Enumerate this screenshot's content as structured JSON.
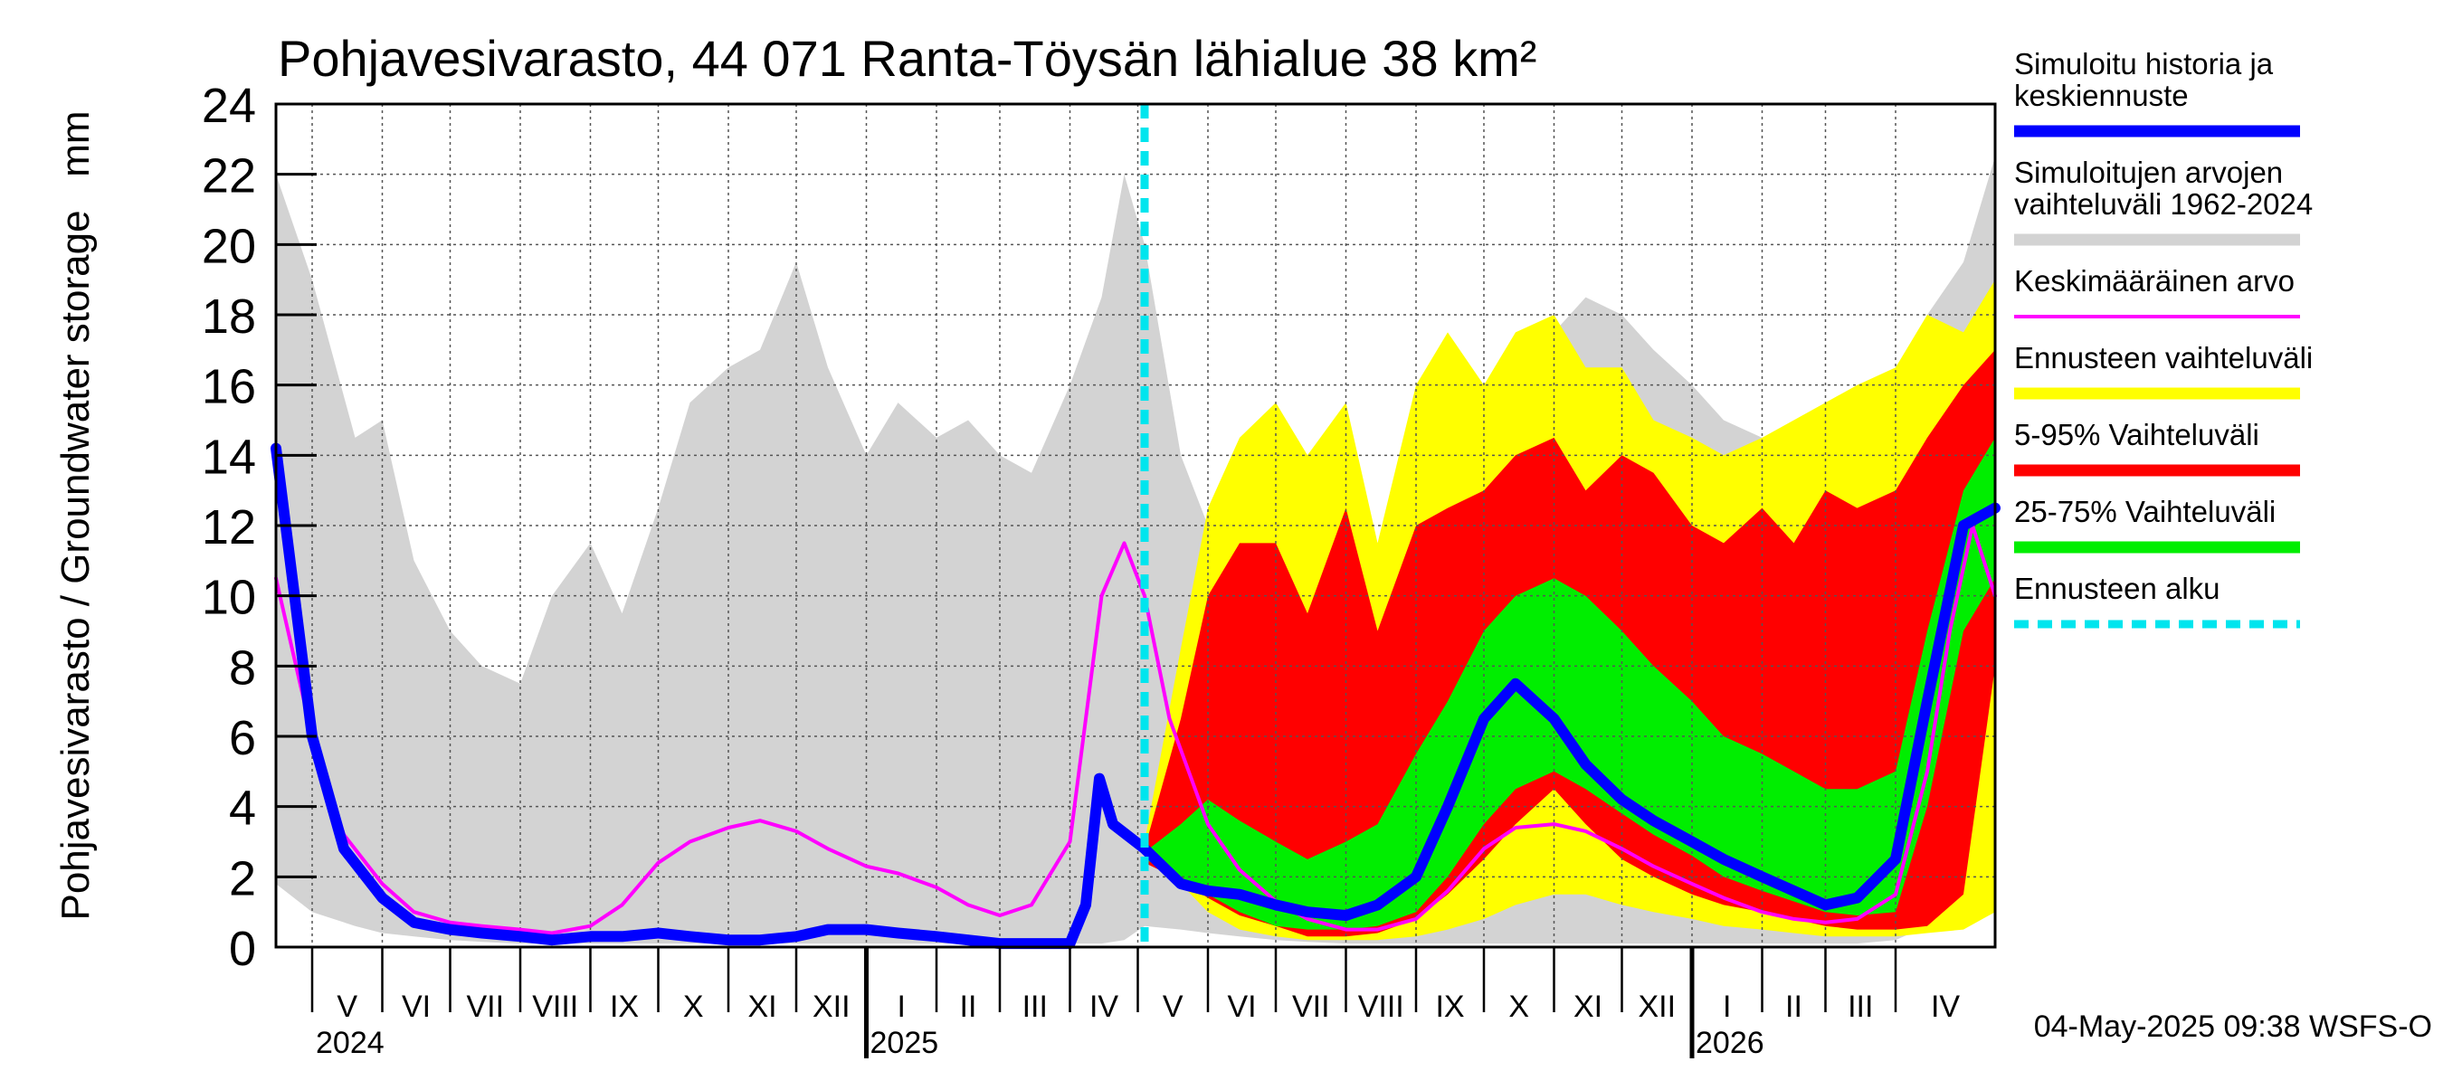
{
  "chart_data": {
    "type": "area",
    "title": "Pohjavesivarasto, 44 071 Ranta-Töysän lähialue 38 km²",
    "ylabel": "Pohjavesivarasto / Groundwater storage   mm",
    "ylim": [
      0,
      24
    ],
    "yticks": [
      0,
      2,
      4,
      6,
      8,
      10,
      12,
      14,
      16,
      18,
      20,
      22,
      24
    ],
    "x_start": "2024-04-15",
    "x_end": "2026-05-15",
    "forecast_start": "2025-05-04",
    "months": [
      {
        "label": "V",
        "date": "2024-05-01"
      },
      {
        "label": "VI",
        "date": "2024-06-01"
      },
      {
        "label": "VII",
        "date": "2024-07-01"
      },
      {
        "label": "VIII",
        "date": "2024-08-01"
      },
      {
        "label": "IX",
        "date": "2024-09-01"
      },
      {
        "label": "X",
        "date": "2024-10-01"
      },
      {
        "label": "XI",
        "date": "2024-11-01"
      },
      {
        "label": "XII",
        "date": "2024-12-01"
      },
      {
        "label": "I",
        "date": "2025-01-01"
      },
      {
        "label": "II",
        "date": "2025-02-01"
      },
      {
        "label": "III",
        "date": "2025-03-01"
      },
      {
        "label": "IV",
        "date": "2025-04-01"
      },
      {
        "label": "V",
        "date": "2025-05-01"
      },
      {
        "label": "VI",
        "date": "2025-06-01"
      },
      {
        "label": "VII",
        "date": "2025-07-01"
      },
      {
        "label": "VIII",
        "date": "2025-08-01"
      },
      {
        "label": "IX",
        "date": "2025-09-01"
      },
      {
        "label": "X",
        "date": "2025-10-01"
      },
      {
        "label": "XI",
        "date": "2025-11-01"
      },
      {
        "label": "XII",
        "date": "2025-12-01"
      },
      {
        "label": "I",
        "date": "2026-01-01"
      },
      {
        "label": "II",
        "date": "2026-02-01"
      },
      {
        "label": "III",
        "date": "2026-03-01"
      },
      {
        "label": "IV",
        "date": "2026-04-01"
      }
    ],
    "years": [
      {
        "label": "2024",
        "date": "2024-05-01"
      },
      {
        "label": "2025",
        "date": "2025-01-01"
      },
      {
        "label": "2026",
        "date": "2026-01-01"
      }
    ],
    "series": [
      {
        "name": "Simuloitujen arvojen vaihteluväli 1962-2024",
        "kind": "band",
        "color": "#d3d3d3",
        "x": [
          "2024-04-15",
          "2024-05-01",
          "2024-05-20",
          "2024-06-01",
          "2024-06-15",
          "2024-07-01",
          "2024-07-15",
          "2024-08-01",
          "2024-08-15",
          "2024-09-01",
          "2024-09-15",
          "2024-10-01",
          "2024-10-15",
          "2024-11-01",
          "2024-11-15",
          "2024-12-01",
          "2024-12-15",
          "2025-01-01",
          "2025-01-15",
          "2025-02-01",
          "2025-02-15",
          "2025-03-01",
          "2025-03-15",
          "2025-04-01",
          "2025-04-15",
          "2025-04-25",
          "2025-05-04",
          "2025-05-20",
          "2025-06-01",
          "2025-06-15",
          "2025-07-01",
          "2025-07-15",
          "2025-08-01",
          "2025-08-15",
          "2025-09-01",
          "2025-09-15",
          "2025-10-01",
          "2025-10-15",
          "2025-11-01",
          "2025-11-15",
          "2025-12-01",
          "2025-12-15",
          "2026-01-01",
          "2026-01-15",
          "2026-02-01",
          "2026-02-15",
          "2026-03-01",
          "2026-03-15",
          "2026-04-01",
          "2026-04-15",
          "2026-05-01",
          "2026-05-15"
        ],
        "upper": [
          22.0,
          19.0,
          14.5,
          15.0,
          11.0,
          9.0,
          8.0,
          7.5,
          10.0,
          11.5,
          9.5,
          12.5,
          15.5,
          16.5,
          17.0,
          19.5,
          16.5,
          14.0,
          15.5,
          14.5,
          15.0,
          14.0,
          13.5,
          16.0,
          18.5,
          22.0,
          20.0,
          14.0,
          12.0,
          11.5,
          11.0,
          10.5,
          10.0,
          10.5,
          11.0,
          12.5,
          14.0,
          16.0,
          17.5,
          18.5,
          18.0,
          17.0,
          16.0,
          15.0,
          14.5,
          14.0,
          14.5,
          15.0,
          16.0,
          18.0,
          19.5,
          22.5
        ],
        "lower": [
          1.8,
          1.0,
          0.6,
          0.4,
          0.3,
          0.2,
          0.15,
          0.1,
          0.1,
          0.1,
          0.1,
          0.1,
          0.1,
          0.1,
          0.1,
          0.1,
          0.1,
          0.1,
          0.1,
          0.1,
          0.1,
          0.1,
          0.1,
          0.1,
          0.1,
          0.2,
          0.6,
          0.5,
          0.4,
          0.3,
          0.2,
          0.15,
          0.1,
          0.1,
          0.1,
          0.1,
          0.1,
          0.1,
          0.1,
          0.1,
          0.1,
          0.1,
          0.1,
          0.1,
          0.1,
          0.1,
          0.1,
          0.1,
          0.2,
          0.6,
          1.5,
          1.8
        ]
      },
      {
        "name": "Ennusteen vaihteluväli",
        "kind": "band",
        "color": "#ffff00",
        "x": [
          "2025-05-04",
          "2025-05-20",
          "2025-06-01",
          "2025-06-15",
          "2025-07-01",
          "2025-07-15",
          "2025-08-01",
          "2025-08-15",
          "2025-09-01",
          "2025-09-15",
          "2025-10-01",
          "2025-10-15",
          "2025-11-01",
          "2025-11-15",
          "2025-12-01",
          "2025-12-15",
          "2026-01-01",
          "2026-01-15",
          "2026-02-01",
          "2026-02-15",
          "2026-03-01",
          "2026-03-15",
          "2026-04-01",
          "2026-04-15",
          "2026-05-01",
          "2026-05-15"
        ],
        "upper": [
          3.0,
          8.5,
          12.5,
          14.5,
          15.5,
          14.0,
          15.5,
          11.5,
          16.0,
          17.5,
          16.0,
          17.5,
          18.0,
          16.5,
          16.5,
          15.0,
          14.5,
          14.0,
          14.5,
          15.0,
          15.5,
          16.0,
          16.5,
          18.0,
          17.5,
          19.0
        ],
        "lower": [
          2.5,
          1.8,
          1.0,
          0.5,
          0.3,
          0.2,
          0.2,
          0.2,
          0.3,
          0.5,
          0.8,
          1.2,
          1.5,
          1.5,
          1.2,
          1.0,
          0.8,
          0.6,
          0.5,
          0.4,
          0.3,
          0.3,
          0.3,
          0.4,
          0.5,
          1.0
        ]
      },
      {
        "name": "5-95% Vaihteluväli",
        "kind": "band",
        "color": "#ff0000",
        "x": [
          "2025-05-04",
          "2025-05-20",
          "2025-06-01",
          "2025-06-15",
          "2025-07-01",
          "2025-07-15",
          "2025-08-01",
          "2025-08-15",
          "2025-09-01",
          "2025-09-15",
          "2025-10-01",
          "2025-10-15",
          "2025-11-01",
          "2025-11-15",
          "2025-12-01",
          "2025-12-15",
          "2026-01-01",
          "2026-01-15",
          "2026-02-01",
          "2026-02-15",
          "2026-03-01",
          "2026-03-15",
          "2026-04-01",
          "2026-04-15",
          "2026-05-01",
          "2026-05-15"
        ],
        "upper": [
          2.8,
          6.5,
          10.0,
          11.5,
          11.5,
          9.5,
          12.5,
          9.0,
          12.0,
          12.5,
          13.0,
          14.0,
          14.5,
          13.0,
          14.0,
          13.5,
          12.0,
          11.5,
          12.5,
          11.5,
          13.0,
          12.5,
          13.0,
          14.5,
          16.0,
          17.0
        ],
        "lower": [
          2.4,
          1.9,
          1.4,
          0.9,
          0.6,
          0.3,
          0.3,
          0.4,
          0.8,
          1.5,
          2.5,
          3.5,
          4.5,
          3.5,
          2.5,
          2.0,
          1.5,
          1.2,
          1.0,
          0.8,
          0.6,
          0.5,
          0.5,
          0.6,
          1.5,
          8.0
        ]
      },
      {
        "name": "25-75% Vaihteluväli",
        "kind": "band",
        "color": "#00ee00",
        "x": [
          "2025-05-04",
          "2025-05-20",
          "2025-06-01",
          "2025-06-15",
          "2025-07-01",
          "2025-07-15",
          "2025-08-01",
          "2025-08-15",
          "2025-09-01",
          "2025-09-15",
          "2025-10-01",
          "2025-10-15",
          "2025-11-01",
          "2025-11-15",
          "2025-12-01",
          "2025-12-15",
          "2026-01-01",
          "2026-01-15",
          "2026-02-01",
          "2026-02-15",
          "2026-03-01",
          "2026-03-15",
          "2026-04-01",
          "2026-04-15",
          "2026-05-01",
          "2026-05-15"
        ],
        "upper": [
          2.7,
          3.5,
          4.2,
          3.6,
          3.0,
          2.5,
          3.0,
          3.5,
          5.5,
          7.0,
          9.0,
          10.0,
          10.5,
          10.0,
          9.0,
          8.0,
          7.0,
          6.0,
          5.5,
          5.0,
          4.5,
          4.5,
          5.0,
          9.0,
          13.0,
          14.5
        ],
        "lower": [
          2.5,
          2.0,
          1.5,
          1.0,
          0.6,
          0.5,
          0.5,
          0.6,
          1.0,
          2.0,
          3.5,
          4.5,
          5.0,
          4.5,
          3.8,
          3.2,
          2.6,
          2.0,
          1.6,
          1.3,
          1.0,
          0.9,
          1.0,
          4.0,
          9.0,
          10.5
        ]
      },
      {
        "name": "Keskimääräinen arvo",
        "kind": "line",
        "color": "#ff00ff",
        "x": [
          "2024-04-15",
          "2024-05-01",
          "2024-05-15",
          "2024-06-01",
          "2024-06-15",
          "2024-07-01",
          "2024-07-15",
          "2024-08-01",
          "2024-08-15",
          "2024-09-01",
          "2024-09-15",
          "2024-10-01",
          "2024-10-15",
          "2024-11-01",
          "2024-11-15",
          "2024-12-01",
          "2024-12-15",
          "2025-01-01",
          "2025-01-15",
          "2025-02-01",
          "2025-02-15",
          "2025-03-01",
          "2025-03-15",
          "2025-04-01",
          "2025-04-08",
          "2025-04-15",
          "2025-04-25",
          "2025-05-04",
          "2025-05-15",
          "2025-06-01",
          "2025-06-15",
          "2025-07-01",
          "2025-07-15",
          "2025-08-01",
          "2025-08-15",
          "2025-09-01",
          "2025-09-15",
          "2025-10-01",
          "2025-10-15",
          "2025-11-01",
          "2025-11-15",
          "2025-12-01",
          "2025-12-15",
          "2026-01-01",
          "2026-01-15",
          "2026-02-01",
          "2026-02-15",
          "2026-03-01",
          "2026-03-15",
          "2026-04-01",
          "2026-04-15",
          "2026-04-25",
          "2026-05-05",
          "2026-05-15"
        ],
        "y": [
          10.5,
          6.0,
          3.2,
          1.8,
          1.0,
          0.7,
          0.6,
          0.5,
          0.4,
          0.6,
          1.2,
          2.4,
          3.0,
          3.4,
          3.6,
          3.3,
          2.8,
          2.3,
          2.1,
          1.7,
          1.2,
          0.9,
          1.2,
          3.0,
          6.5,
          10.0,
          11.5,
          10.0,
          6.5,
          3.5,
          2.2,
          1.3,
          0.8,
          0.5,
          0.5,
          0.8,
          1.6,
          2.8,
          3.4,
          3.5,
          3.3,
          2.8,
          2.3,
          1.8,
          1.4,
          1.0,
          0.8,
          0.7,
          0.8,
          1.5,
          5.0,
          9.0,
          12.0,
          10.0
        ]
      },
      {
        "name": "Simuloitu historia ja keskiennuste",
        "kind": "line",
        "color": "#0000ff",
        "x": [
          "2024-04-15",
          "2024-05-01",
          "2024-05-15",
          "2024-06-01",
          "2024-06-15",
          "2024-07-01",
          "2024-07-15",
          "2024-08-01",
          "2024-08-15",
          "2024-09-01",
          "2024-09-15",
          "2024-10-01",
          "2024-10-15",
          "2024-11-01",
          "2024-11-15",
          "2024-12-01",
          "2024-12-15",
          "2025-01-01",
          "2025-01-15",
          "2025-02-01",
          "2025-02-15",
          "2025-03-01",
          "2025-03-15",
          "2025-04-01",
          "2025-04-08",
          "2025-04-14",
          "2025-04-20",
          "2025-05-04",
          "2025-05-20",
          "2025-06-01",
          "2025-06-15",
          "2025-07-01",
          "2025-07-15",
          "2025-08-01",
          "2025-08-15",
          "2025-09-01",
          "2025-09-15",
          "2025-10-01",
          "2025-10-15",
          "2025-11-01",
          "2025-11-15",
          "2025-12-01",
          "2025-12-15",
          "2026-01-01",
          "2026-01-15",
          "2026-02-01",
          "2026-02-15",
          "2026-03-01",
          "2026-03-15",
          "2026-04-01",
          "2026-04-15",
          "2026-05-01",
          "2026-05-15"
        ],
        "y": [
          14.2,
          6.0,
          2.8,
          1.4,
          0.7,
          0.5,
          0.4,
          0.3,
          0.2,
          0.3,
          0.3,
          0.4,
          0.3,
          0.2,
          0.2,
          0.3,
          0.5,
          0.5,
          0.4,
          0.3,
          0.2,
          0.1,
          0.1,
          0.1,
          1.2,
          4.8,
          3.5,
          2.8,
          1.8,
          1.6,
          1.5,
          1.2,
          1.0,
          0.9,
          1.2,
          2.0,
          4.0,
          6.5,
          7.5,
          6.5,
          5.2,
          4.2,
          3.6,
          3.0,
          2.5,
          2.0,
          1.6,
          1.2,
          1.4,
          2.5,
          7.0,
          12.0,
          12.5
        ]
      },
      {
        "name": "Ennusteen alku",
        "kind": "vline",
        "color": "#00e5ee",
        "x": "2025-05-04"
      }
    ],
    "legend": [
      {
        "text": "Simuloitu historia ja\nkeskiennuste",
        "color": "#0000ff",
        "style": "thick"
      },
      {
        "text": "Simuloitujen arvojen\nvaihteluväli 1962-2024",
        "color": "#d3d3d3",
        "style": "thick"
      },
      {
        "text": "Keskimääräinen arvo",
        "color": "#ff00ff",
        "style": "thin"
      },
      {
        "text": "Ennusteen vaihteluväli",
        "color": "#ffff00",
        "style": "thick"
      },
      {
        "text": "5-95% Vaihteluväli",
        "color": "#ff0000",
        "style": "thick"
      },
      {
        "text": "25-75% Vaihteluväli",
        "color": "#00ee00",
        "style": "thick"
      },
      {
        "text": "Ennusteen alku",
        "color": "#00e5ee",
        "style": "dashed"
      }
    ],
    "legend_position": "right",
    "footer": "04-May-2025 09:38 WSFS-O",
    "grid": true
  }
}
